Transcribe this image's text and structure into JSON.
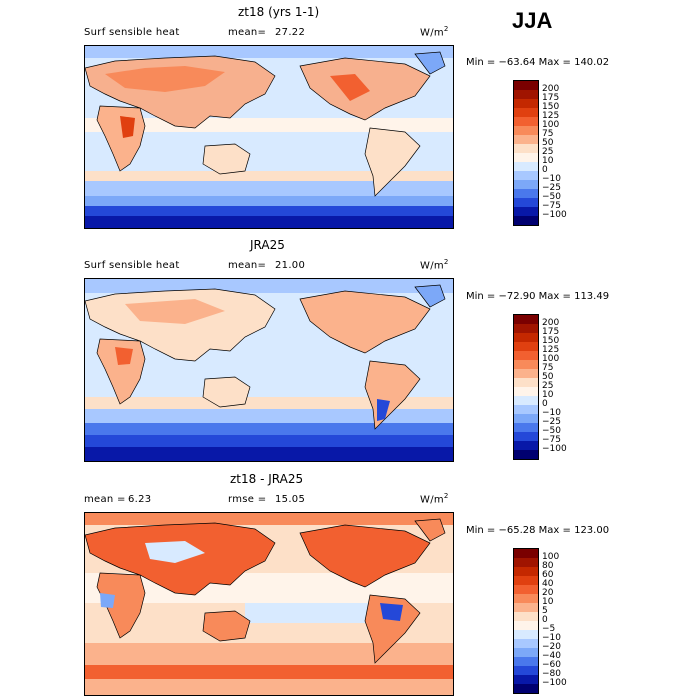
{
  "season": "JJA",
  "units_html": "W/m",
  "units_sup": "2",
  "panels": [
    {
      "title": "zt18 (yrs 1-1)",
      "variable": "Surf sensible heat",
      "mean_label": "mean=",
      "mean_value": "27.22",
      "rmse_label": "",
      "rmse_value": "",
      "min_max": "Min = −63.64 Max = 140.02",
      "levels": [
        "200",
        "175",
        "150",
        "125",
        "100",
        "75",
        "50",
        "25",
        "10",
        "0",
        "−10",
        "−25",
        "−50",
        "−75",
        "−100"
      ]
    },
    {
      "title": "JRA25",
      "variable": "Surf sensible heat",
      "mean_label": "mean=",
      "mean_value": "21.00",
      "rmse_label": "",
      "rmse_value": "",
      "min_max": "Min = −72.90 Max = 113.49",
      "levels": [
        "200",
        "175",
        "150",
        "125",
        "100",
        "75",
        "50",
        "25",
        "10",
        "0",
        "−10",
        "−25",
        "−50",
        "−75",
        "−100"
      ]
    },
    {
      "title": "zt18 - JRA25",
      "variable": "",
      "mean_label": "mean =",
      "mean_value": "6.23",
      "rmse_label": "rmse =",
      "rmse_value": "15.05",
      "min_max": "Min = −65.28 Max = 123.00",
      "levels": [
        "100",
        "80",
        "60",
        "40",
        "20",
        "10",
        "5",
        "0",
        "−5",
        "−10",
        "−20",
        "−40",
        "−60",
        "−80",
        "−100"
      ]
    }
  ],
  "colors": {
    "scale": [
      "#7a0000",
      "#a01400",
      "#c42800",
      "#e04010",
      "#f26030",
      "#f88a5a",
      "#fbb28c",
      "#fde0c8",
      "#fff4ea",
      "#d8eaff",
      "#a8c8ff",
      "#7ca8f8",
      "#4a78ec",
      "#2448d8",
      "#0818a8",
      "#000070"
    ],
    "land_warm": "#f7b08e",
    "ocean_light": "#d8eaff",
    "ocean_mid": "#a8c8ff",
    "southern_band": "#2448d8"
  }
}
